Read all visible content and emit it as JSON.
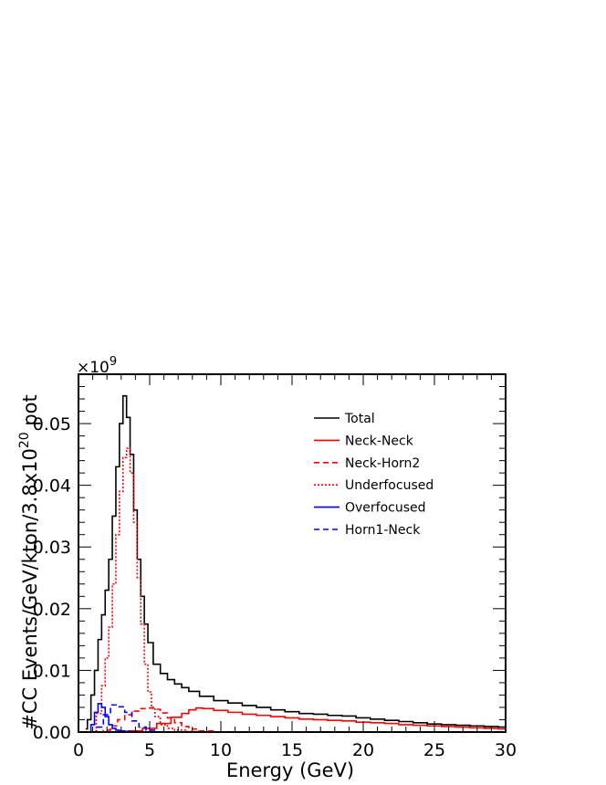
{
  "chart_data": {
    "type": "line",
    "xlabel": "Energy (GeV)",
    "ylabel_parts": {
      "main": "#CC Events/GeV/kton/3.8x10",
      "sup": "20",
      "tail": " pot"
    },
    "y_multiplier": {
      "prefix": "×10",
      "sup": "9"
    },
    "xlim": [
      0,
      30
    ],
    "ylim": [
      0,
      0.058
    ],
    "xticks": [
      0,
      5,
      10,
      15,
      20,
      25,
      30
    ],
    "xtick_labels": [
      "0",
      "5",
      "10",
      "15",
      "20",
      "25",
      "30"
    ],
    "yticks": [
      0,
      0.01,
      0.02,
      0.03,
      0.04,
      0.05
    ],
    "ytick_labels": [
      "0.00",
      "0.01",
      "0.02",
      "0.03",
      "0.04",
      "0.05"
    ],
    "grid": false,
    "legend_position": "top-right",
    "series": [
      {
        "name": "Total",
        "color": "#000000",
        "dash": "solid",
        "x": [
          0.5,
          0.75,
          1.0,
          1.25,
          1.5,
          1.75,
          2.0,
          2.25,
          2.5,
          2.75,
          3.0,
          3.25,
          3.5,
          3.75,
          4.0,
          4.25,
          4.5,
          4.75,
          5.0,
          5.5,
          6.0,
          6.5,
          7.0,
          7.5,
          8.0,
          9.0,
          10.0,
          11.0,
          12.0,
          13.0,
          14.0,
          15.0,
          16.0,
          17.0,
          18.0,
          19.0,
          20.0,
          21.0,
          22.0,
          23.0,
          24.0,
          25.0,
          26.0,
          27.0,
          28.0,
          29.0,
          30.0
        ],
        "y": [
          0.0005,
          0.002,
          0.006,
          0.01,
          0.015,
          0.019,
          0.023,
          0.028,
          0.035,
          0.043,
          0.05,
          0.0545,
          0.051,
          0.045,
          0.036,
          0.028,
          0.022,
          0.0175,
          0.0145,
          0.011,
          0.0095,
          0.0085,
          0.0078,
          0.0072,
          0.0066,
          0.0058,
          0.0051,
          0.0047,
          0.0043,
          0.004,
          0.0036,
          0.0033,
          0.003,
          0.0029,
          0.0027,
          0.0026,
          0.0023,
          0.0021,
          0.0019,
          0.0017,
          0.0015,
          0.0013,
          0.0012,
          0.0011,
          0.001,
          0.0009,
          0.0008
        ]
      },
      {
        "name": "Neck-Neck",
        "color": "#ff0000",
        "dash": "solid",
        "x": [
          3.0,
          4.0,
          5.0,
          6.0,
          7.0,
          7.5,
          8.0,
          8.5,
          9.0,
          10.0,
          11.0,
          12.0,
          13.0,
          14.0,
          15.0,
          16.0,
          17.0,
          18.0,
          19.0,
          20.0,
          21.0,
          22.0,
          23.0,
          24.0,
          25.0,
          26.0,
          27.0,
          28.0,
          29.0,
          30.0
        ],
        "y": [
          0.0,
          0.0002,
          0.0006,
          0.0014,
          0.0024,
          0.003,
          0.0036,
          0.0039,
          0.0038,
          0.0035,
          0.0032,
          0.0029,
          0.0027,
          0.0025,
          0.0023,
          0.0021,
          0.002,
          0.0019,
          0.0018,
          0.0016,
          0.0015,
          0.0014,
          0.0012,
          0.0011,
          0.001,
          0.0009,
          0.0008,
          0.0007,
          0.0006,
          0.0005
        ]
      },
      {
        "name": "Neck-Horn2",
        "color": "#ff0000",
        "dash": "dashed",
        "x": [
          1.5,
          2.0,
          2.5,
          3.0,
          3.5,
          4.0,
          4.5,
          5.0,
          5.5,
          6.0,
          6.5,
          7.0,
          7.5,
          8.0,
          9.0,
          10.0
        ],
        "y": [
          0.0,
          0.0003,
          0.001,
          0.002,
          0.0028,
          0.0034,
          0.0038,
          0.0039,
          0.0037,
          0.0031,
          0.0023,
          0.0015,
          0.0009,
          0.0005,
          0.0002,
          0.0
        ]
      },
      {
        "name": "Underfocused",
        "color": "#ff0000",
        "dash": "dotted",
        "x": [
          1.0,
          1.5,
          1.75,
          2.0,
          2.25,
          2.5,
          2.75,
          3.0,
          3.25,
          3.5,
          3.75,
          4.0,
          4.25,
          4.5,
          4.75,
          5.0,
          5.25,
          5.5,
          6.0,
          6.5,
          7.0,
          8.0,
          9.0
        ],
        "y": [
          0.0,
          0.003,
          0.0075,
          0.012,
          0.017,
          0.024,
          0.032,
          0.039,
          0.0445,
          0.046,
          0.042,
          0.034,
          0.025,
          0.0175,
          0.011,
          0.0065,
          0.004,
          0.0025,
          0.0012,
          0.0006,
          0.0003,
          0.0001,
          0.0
        ]
      },
      {
        "name": "Overfocused",
        "color": "#0000ff",
        "dash": "solid",
        "x": [
          0.75,
          1.0,
          1.25,
          1.5,
          1.75,
          2.0,
          2.25,
          2.5,
          2.75,
          3.0,
          3.5,
          4.0
        ],
        "y": [
          0.0,
          0.0012,
          0.0032,
          0.0046,
          0.004,
          0.0025,
          0.0012,
          0.0006,
          0.0003,
          0.0002,
          0.0001,
          0.0
        ]
      },
      {
        "name": "Horn1-Neck",
        "color": "#0000ff",
        "dash": "dashed",
        "x": [
          1.0,
          1.5,
          2.0,
          2.5,
          3.0,
          3.5,
          4.0,
          4.5,
          5.0,
          6.0
        ],
        "y": [
          0.0,
          0.0008,
          0.0028,
          0.0044,
          0.0041,
          0.0032,
          0.0018,
          0.0008,
          0.0003,
          0.0
        ]
      }
    ]
  }
}
